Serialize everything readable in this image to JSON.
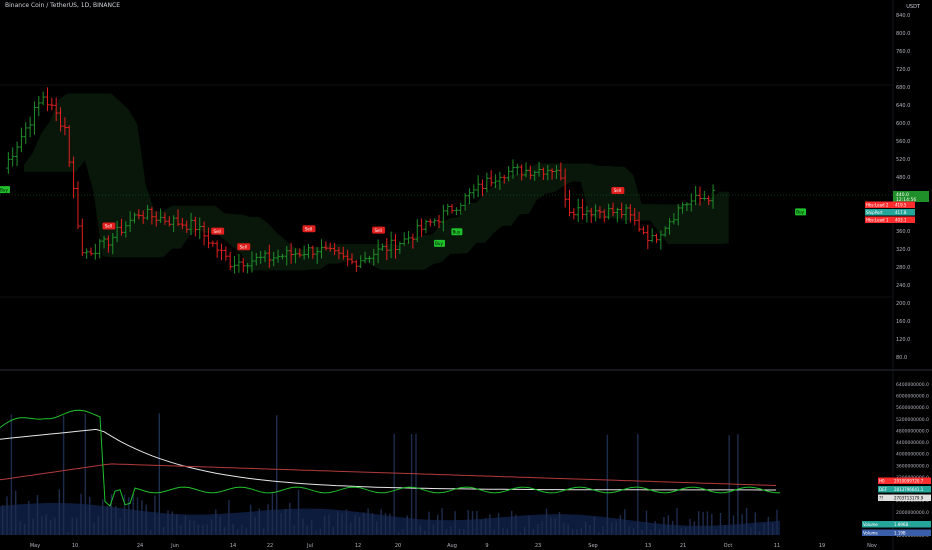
{
  "header": {
    "symbol_title": "Binance Coin / TetherUS, 1D, BINANCE",
    "currency": "USDT"
  },
  "price_axis": {
    "ticks": [
      "840.0",
      "800.0",
      "760.0",
      "720.0",
      "680.0",
      "640.0",
      "600.0",
      "560.0",
      "520.0",
      "480.0",
      "440.0",
      "400.0",
      "360.0",
      "320.0",
      "280.0",
      "240.0",
      "200.0",
      "160.0",
      "120.0",
      "80.0"
    ],
    "last_price": "440.0",
    "countdown": "12:14:56",
    "labels": [
      {
        "text": "Hbs:Lead 2",
        "value": "419.5",
        "color": "#ff2d2d"
      },
      {
        "text": "ShipPort",
        "value": "417.8",
        "color": "#26a69a"
      },
      {
        "text": "Hbs:Lead 1",
        "value": "403.1",
        "color": "#ff2d2d"
      }
    ]
  },
  "volume_axis": {
    "ticks": [
      "6400000000.0",
      "6000000000.0",
      "5600000000.0",
      "5200000000.0",
      "4800000000.0",
      "4400000000.0",
      "4000000000.0",
      "3600000000.0",
      "3200000000.0",
      "2800000000.0",
      "2400000000.0",
      "2000000000.0",
      "1600000000.0",
      "1200000000.0"
    ],
    "labels": [
      {
        "text": "H0",
        "value": "2910099720.7",
        "color": "#ff2d2d"
      },
      {
        "text": "DEF",
        "value": "2813796641.1",
        "color": "#26a69a"
      },
      {
        "text": "??",
        "value": "2703713179.9",
        "color": "#e0e0e0"
      },
      {
        "text": "Volume",
        "value": "1.896B",
        "color": "#26a69a"
      },
      {
        "text": "Volume",
        "value": "1.19B",
        "color": "#3a5fa8"
      }
    ]
  },
  "time_axis": {
    "labels": [
      "May",
      "10",
      "24",
      "Jun",
      "14",
      "22",
      "Jul",
      "12",
      "20",
      "Aug",
      "9",
      "23",
      "Sep",
      "13",
      "21",
      "Oct",
      "11",
      "19",
      "Nov"
    ]
  },
  "signals": {
    "buy_label": "Buy",
    "sell_label": "Sell",
    "buy_count": 4,
    "sell_count": 6
  },
  "chart_data": {
    "type": "candlestick",
    "title": "Binance Coin / TetherUS, 1D, BINANCE",
    "ylim": [
      60,
      860
    ],
    "x_range": [
      "May",
      "Nov"
    ],
    "close_series_approx": [
      {
        "x": "May 1",
        "y": 500
      },
      {
        "x": "May 10",
        "y": 660
      },
      {
        "x": "May 15",
        "y": 590
      },
      {
        "x": "May 19",
        "y": 310
      },
      {
        "x": "May 24",
        "y": 330
      },
      {
        "x": "Jun 1",
        "y": 400
      },
      {
        "x": "Jun 14",
        "y": 370
      },
      {
        "x": "Jun 22",
        "y": 290
      },
      {
        "x": "Jul 1",
        "y": 300
      },
      {
        "x": "Jul 12",
        "y": 320
      },
      {
        "x": "Jul 20",
        "y": 290
      },
      {
        "x": "Aug 1",
        "y": 340
      },
      {
        "x": "Aug 9",
        "y": 390
      },
      {
        "x": "Aug 23",
        "y": 490
      },
      {
        "x": "Sep 5",
        "y": 500
      },
      {
        "x": "Sep 8",
        "y": 410
      },
      {
        "x": "Sep 21",
        "y": 400
      },
      {
        "x": "Sep 27",
        "y": 340
      },
      {
        "x": "Oct 4",
        "y": 420
      },
      {
        "x": "Oct 11",
        "y": 440
      }
    ]
  }
}
